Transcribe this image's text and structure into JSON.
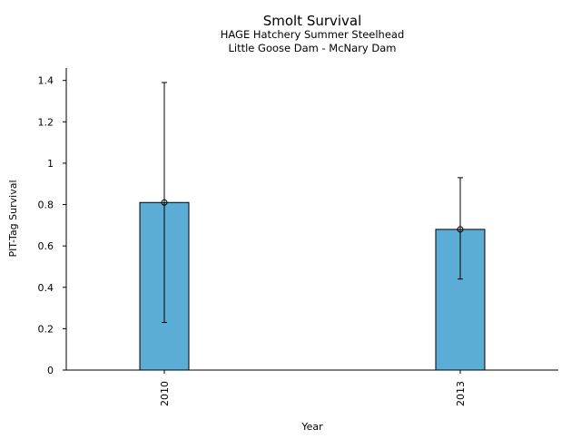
{
  "chart_data": {
    "type": "bar",
    "title": "Smolt Survival",
    "subtitle_lines": [
      "HAGE Hatchery Summer Steelhead",
      "Little Goose Dam - McNary Dam"
    ],
    "xlabel": "Year",
    "ylabel": "PIT-Tag Survival",
    "categories": [
      "2010",
      "2013"
    ],
    "values": [
      0.81,
      0.68
    ],
    "error_low": [
      0.23,
      0.44
    ],
    "error_high": [
      1.39,
      0.93
    ],
    "ylim": [
      0,
      1.46
    ],
    "yticks": [
      0,
      0.2,
      0.4,
      0.6,
      0.8,
      1,
      1.2,
      1.4
    ],
    "ytick_labels": [
      "0",
      "0.2",
      "0.4",
      "0.6",
      "0.8",
      "1",
      "1.2",
      "1.4"
    ],
    "grid": false,
    "bar_color": "#5badd6",
    "bar_edge_color": "#000000"
  }
}
